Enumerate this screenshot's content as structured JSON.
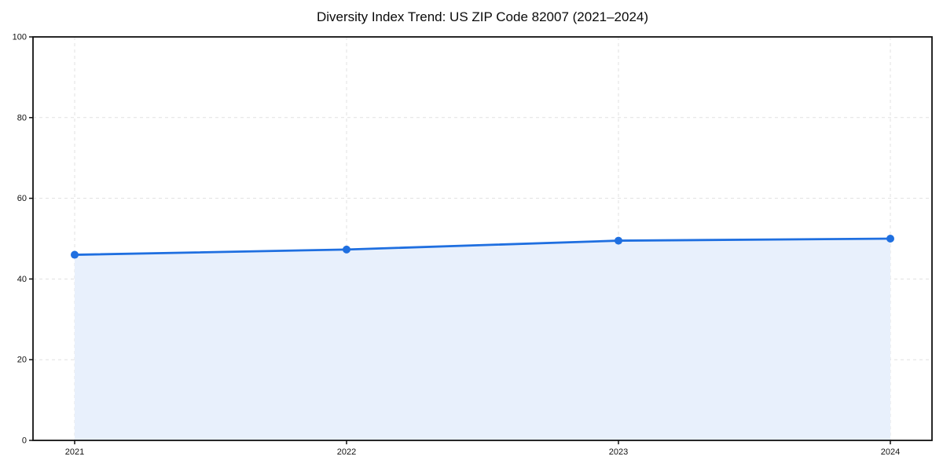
{
  "chart_data": {
    "type": "area",
    "title": "Diversity Index Trend: US ZIP Code 82007 (2021–2024)",
    "x": [
      "2021",
      "2022",
      "2023",
      "2024"
    ],
    "series": [
      {
        "name": "Diversity Index",
        "values": [
          46.0,
          47.3,
          49.5,
          50.0
        ]
      }
    ],
    "xlabel": "",
    "ylabel": "",
    "ylim": [
      0,
      100
    ],
    "yticks": [
      0,
      20,
      40,
      60,
      80,
      100
    ],
    "grid": true,
    "grid_style": "dashed",
    "legend": "none",
    "line_color": "#1f6fe0",
    "fill_color": "#e8f0fc",
    "marker": "circle"
  }
}
